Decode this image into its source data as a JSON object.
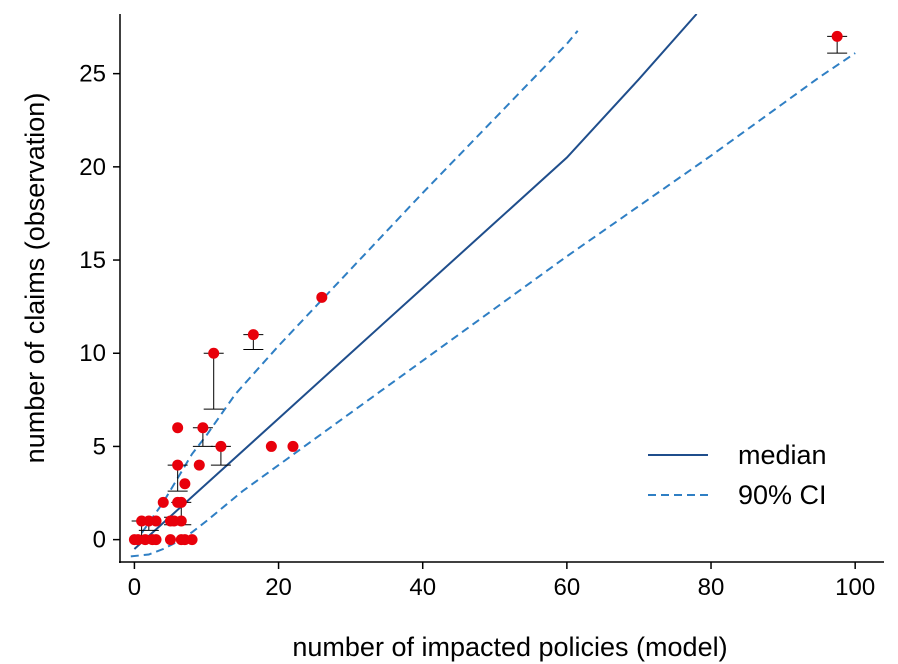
{
  "chart_data": {
    "type": "scatter",
    "xlabel": "number of impacted policies (model)",
    "ylabel": "number of claims (observation)",
    "xlim": [
      -2,
      104
    ],
    "ylim": [
      -1.2,
      28.2
    ],
    "xticks": [
      0,
      20,
      40,
      60,
      80,
      100
    ],
    "yticks": [
      0,
      5,
      10,
      15,
      20,
      25
    ],
    "grid": false,
    "legend_position": "bottom-right",
    "colors": {
      "points": "#e8000b",
      "median": "#1f4e8c",
      "ci": "#2f7fc4",
      "errorbar": "#000000"
    },
    "observations": {
      "x": [
        0,
        0.5,
        1,
        1.5,
        2,
        2.5,
        3,
        3,
        4,
        5,
        5,
        5.5,
        6,
        6,
        6,
        6.5,
        6.5,
        6.5,
        7,
        7,
        8,
        9,
        9.5,
        11,
        12,
        16.5,
        19,
        22,
        26,
        97.5
      ],
      "y": [
        0,
        0,
        1,
        0,
        1,
        0,
        1,
        0,
        2,
        1,
        0,
        1,
        6,
        4,
        2,
        2,
        1,
        0,
        3,
        0,
        0,
        4,
        6,
        10,
        5,
        11,
        5,
        5,
        13,
        27
      ]
    },
    "errorbars": [
      {
        "x": 1,
        "y": 1,
        "lo": 0.2,
        "hi": 1
      },
      {
        "x": 2,
        "y": 1,
        "lo": 0.5,
        "hi": 1
      },
      {
        "x": 5.5,
        "y": 1,
        "lo": 0.8,
        "hi": 1.2
      },
      {
        "x": 6,
        "y": 4,
        "lo": 2.6,
        "hi": 4
      },
      {
        "x": 6.5,
        "y": 2,
        "lo": 0.8,
        "hi": 2
      },
      {
        "x": 9.5,
        "y": 6,
        "lo": 5,
        "hi": 6
      },
      {
        "x": 11,
        "y": 10,
        "lo": 7,
        "hi": 10
      },
      {
        "x": 12,
        "y": 5,
        "lo": 4,
        "hi": 5
      },
      {
        "x": 16.5,
        "y": 11,
        "lo": 10.2,
        "hi": 11
      },
      {
        "x": 97.5,
        "y": 27,
        "lo": 26.1,
        "hi": 27
      }
    ],
    "series": [
      {
        "name": "median",
        "style": "solid",
        "x": [
          0,
          10,
          20,
          30,
          40,
          50,
          60,
          70,
          78
        ],
        "y": [
          -0.5,
          3.0,
          6.5,
          10.0,
          13.5,
          17.0,
          20.5,
          24.7,
          28.2
        ]
      },
      {
        "name": "90% CI",
        "style": "dashed",
        "x": [
          0,
          2,
          4,
          6,
          8,
          10,
          14,
          20,
          30,
          40,
          50,
          60,
          61.5
        ],
        "y": [
          -0.2,
          0.9,
          2.0,
          3.3,
          4.6,
          5.6,
          7.8,
          10.4,
          14.5,
          18.6,
          22.6,
          26.6,
          27.3
        ]
      },
      {
        "name": "",
        "style": "dashed",
        "x": [
          -0.5,
          2,
          4,
          6,
          8,
          10,
          15,
          20,
          30,
          40,
          50,
          60,
          70,
          80,
          90,
          95,
          100
        ],
        "y": [
          -0.9,
          -0.8,
          -0.5,
          -0.1,
          0.4,
          1.0,
          2.6,
          4.0,
          6.8,
          9.6,
          12.4,
          15.2,
          17.9,
          20.6,
          23.4,
          24.8,
          26.1
        ]
      }
    ]
  }
}
